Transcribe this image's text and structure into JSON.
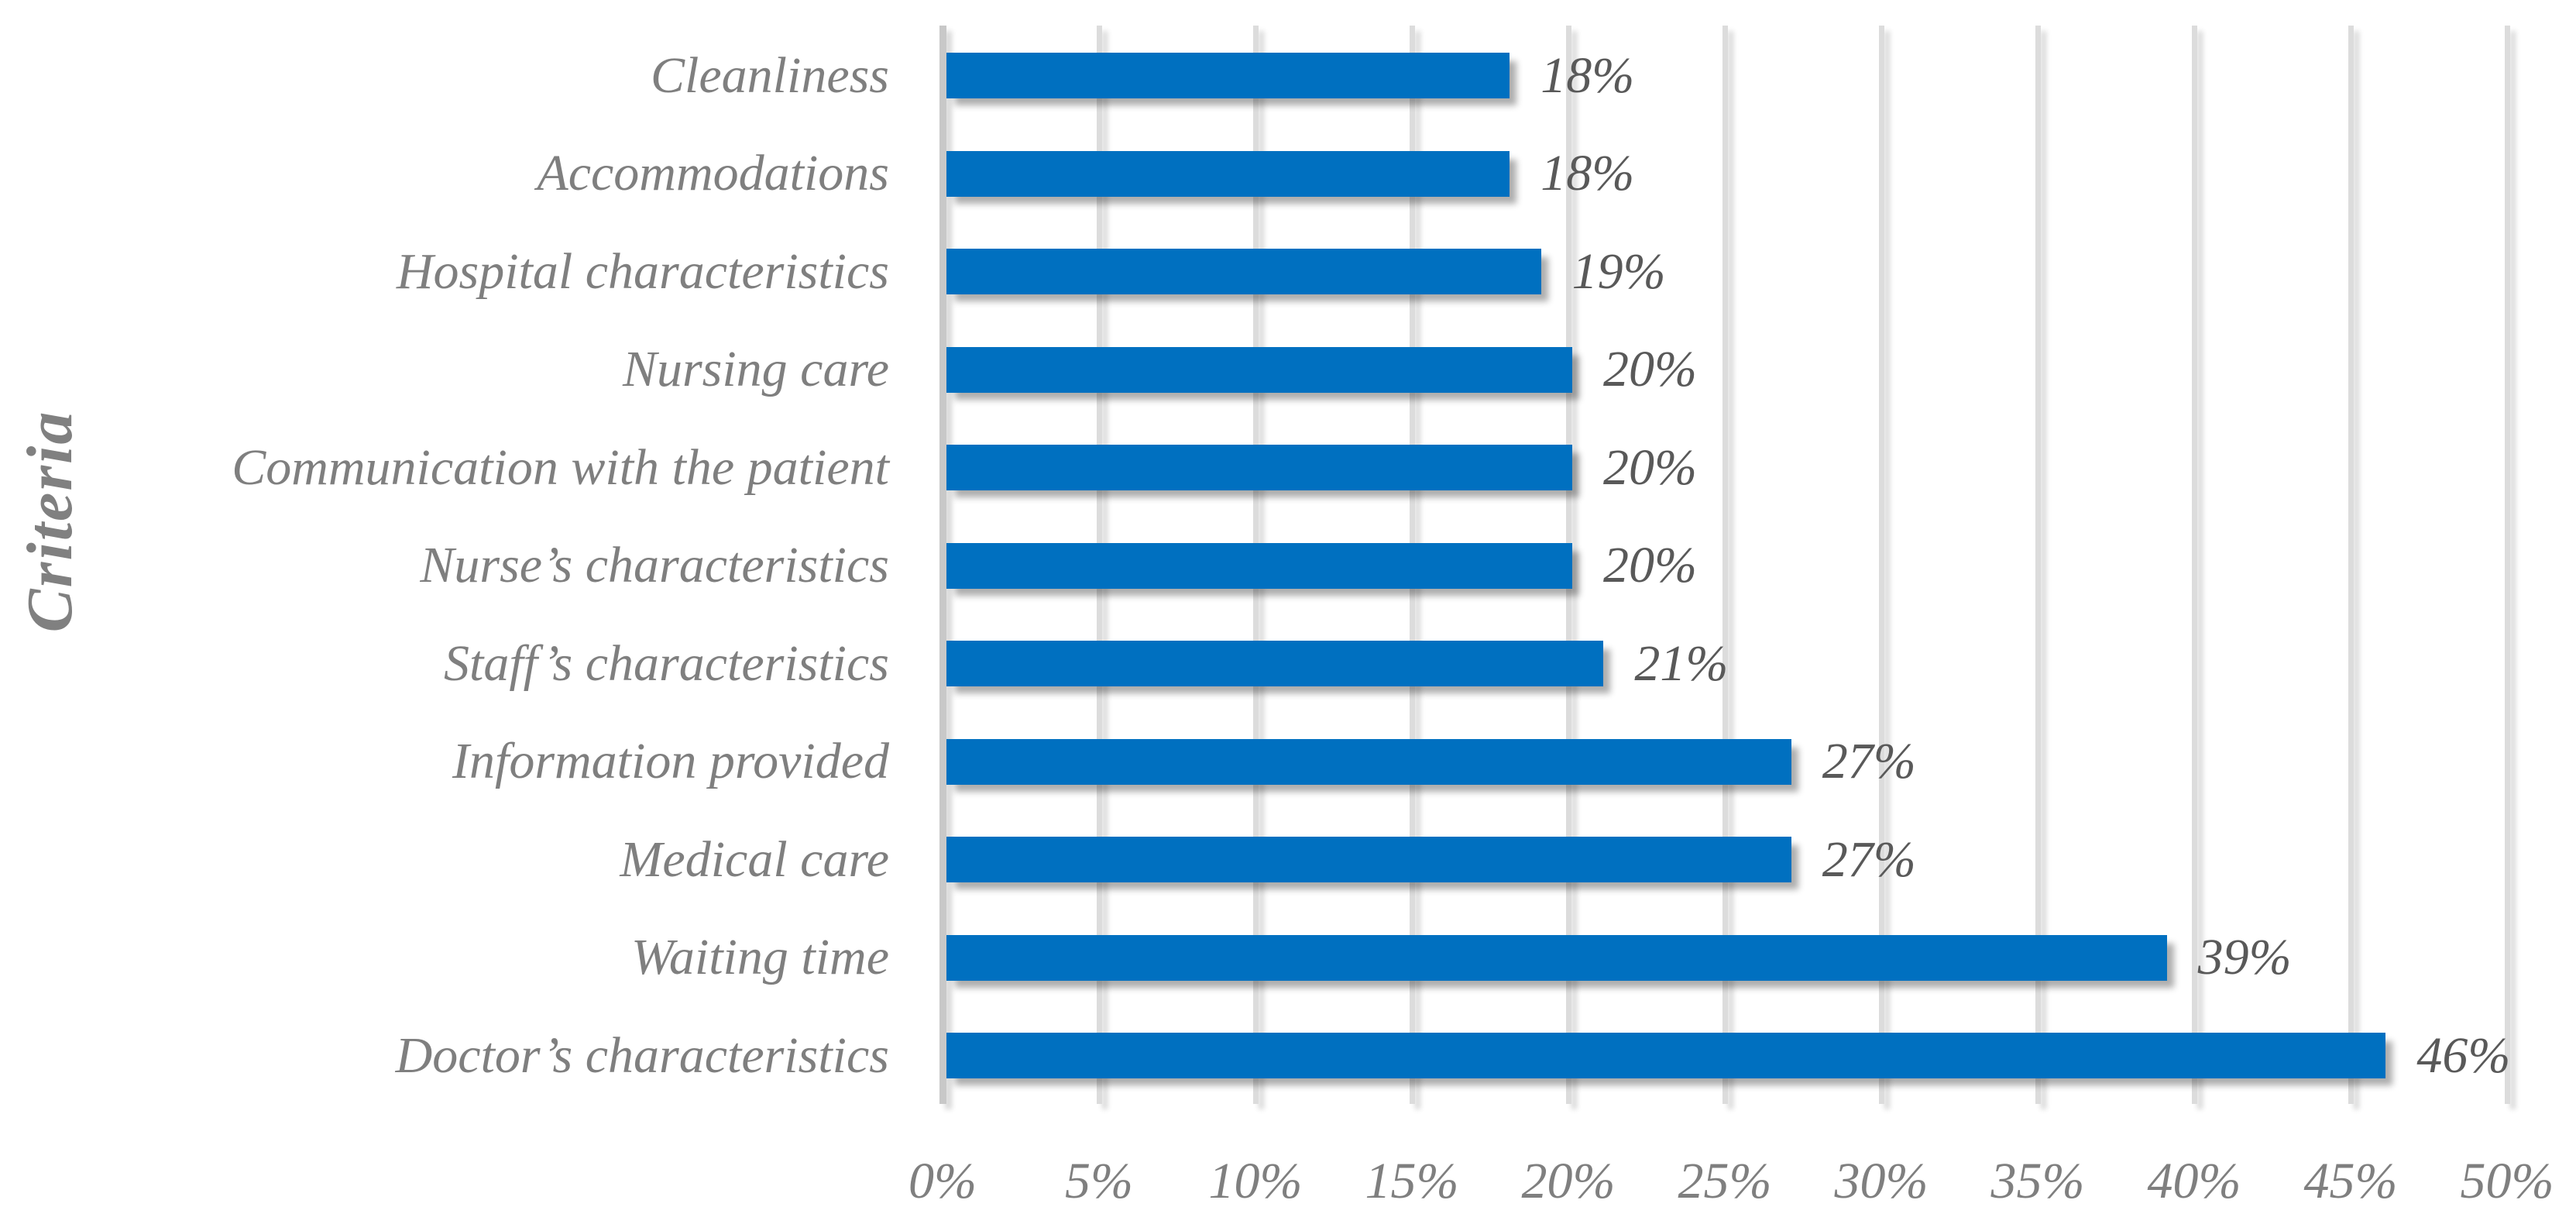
{
  "chart_data": {
    "type": "bar",
    "orientation": "horizontal",
    "title": "",
    "xlabel": "",
    "ylabel": "Criteria",
    "categories": [
      "Cleanliness",
      "Accommodations",
      "Hospital characteristics",
      "Nursing care",
      "Communication with the patient",
      "Nurse’s characteristics",
      "Staff’s characteristics",
      "Information provided",
      "Medical care",
      "Waiting time",
      "Doctor’s characteristics"
    ],
    "values": [
      18,
      18,
      19,
      20,
      20,
      20,
      21,
      27,
      27,
      39,
      46
    ],
    "value_labels": [
      "18%",
      "18%",
      "19%",
      "20%",
      "20%",
      "20%",
      "21%",
      "27%",
      "27%",
      "39%",
      "46%"
    ],
    "x_tick_values": [
      0,
      5,
      10,
      15,
      20,
      25,
      30,
      35,
      40,
      45,
      50
    ],
    "x_tick_labels": [
      "0%",
      "5%",
      "10%",
      "15%",
      "20%",
      "25%",
      "30%",
      "35%",
      "40%",
      "45%",
      "50%"
    ],
    "xlim": [
      0,
      50
    ],
    "grid": "vertical",
    "legend": false,
    "colors": {
      "bar": "#0070C0",
      "category_label": "#7F7F7F",
      "value_label": "#595959",
      "tick_label": "#7F7F7F",
      "axis_title": "#808080",
      "gridline": "#DCDCDC",
      "axis_line": "#C8C8C8",
      "background": "#FFFFFF"
    }
  }
}
